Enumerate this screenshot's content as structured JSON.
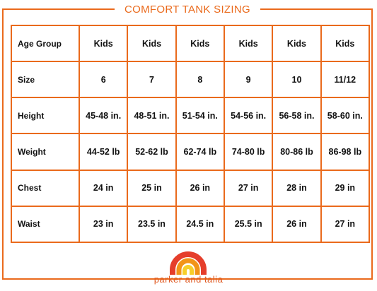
{
  "title": "COMFORT TANK SIZING",
  "brand_name": "parker and talia",
  "colors": {
    "accent": "#ea6a1c",
    "rainbow_outer": "#e53e2b",
    "rainbow_middle": "#f29418",
    "rainbow_inner": "#f7cf2a"
  },
  "table": {
    "rows": [
      {
        "label": "Age Group",
        "cells": [
          "Kids",
          "Kids",
          "Kids",
          "Kids",
          "Kids",
          "Kids"
        ]
      },
      {
        "label": "Size",
        "cells": [
          "6",
          "7",
          "8",
          "9",
          "10",
          "11/12"
        ]
      },
      {
        "label": "Height",
        "cells": [
          "45-48 in.",
          "48-51 in.",
          "51-54 in.",
          "54-56 in.",
          "56-58 in.",
          "58-60 in."
        ]
      },
      {
        "label": "Weight",
        "cells": [
          "44-52 lb",
          "52-62 lb",
          "62-74 lb",
          "74-80 lb",
          "80-86 lb",
          "86-98 lb"
        ]
      },
      {
        "label": "Chest",
        "cells": [
          "24 in",
          "25 in",
          "26 in",
          "27 in",
          "28 in",
          "29 in"
        ]
      },
      {
        "label": "Waist",
        "cells": [
          "23 in",
          "23.5 in",
          "24.5 in",
          "25.5 in",
          "26 in",
          "27 in"
        ]
      }
    ]
  }
}
